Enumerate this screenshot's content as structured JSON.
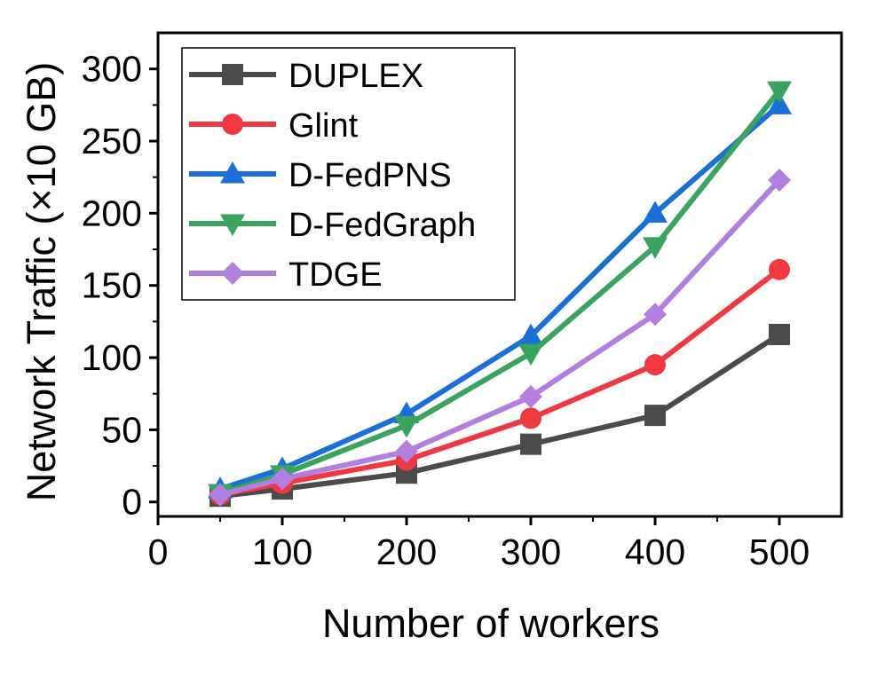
{
  "chart_data": {
    "type": "line",
    "xlabel": "Number of workers",
    "ylabel": "Network Traffic (×10 GB)",
    "xlim": [
      0,
      550
    ],
    "ylim": [
      -10,
      325
    ],
    "xticks": [
      0,
      100,
      200,
      300,
      400,
      500
    ],
    "yticks": [
      0,
      50,
      100,
      150,
      200,
      250,
      300
    ],
    "x": [
      50,
      100,
      200,
      300,
      400,
      500
    ],
    "grid": false,
    "legend_position": "top-left",
    "series": [
      {
        "name": "DUPLEX",
        "values": [
          4,
          9,
          20,
          40,
          60,
          116
        ],
        "color": "#4b4b4b",
        "marker": "square"
      },
      {
        "name": "Glint",
        "values": [
          5,
          13,
          29,
          58,
          95,
          161
        ],
        "color": "#f0393f",
        "marker": "circle"
      },
      {
        "name": "D-FedPNS",
        "values": [
          9,
          23,
          61,
          115,
          200,
          275
        ],
        "color": "#1b6fd8",
        "marker": "triangle-up"
      },
      {
        "name": "D-FedGraph",
        "values": [
          6,
          19,
          53,
          103,
          177,
          285
        ],
        "color": "#3aa35e",
        "marker": "triangle-down"
      },
      {
        "name": "TDGE",
        "values": [
          5,
          16,
          35,
          73,
          130,
          223
        ],
        "color": "#b27ee0",
        "marker": "diamond"
      }
    ]
  }
}
